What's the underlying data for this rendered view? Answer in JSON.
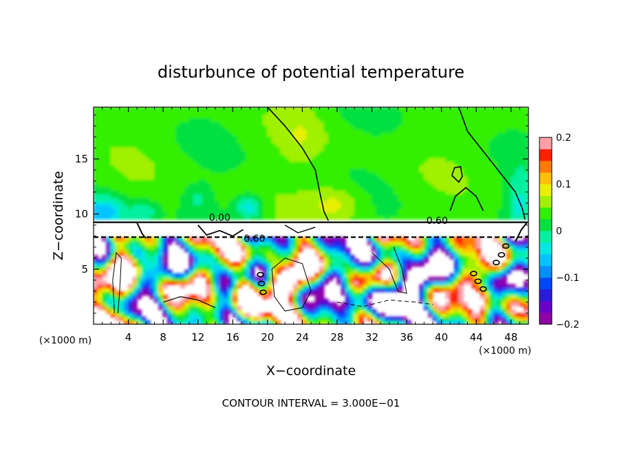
{
  "chart_data": {
    "type": "heatmap",
    "title": "disturbunce of potential temperature",
    "xlabel": "X−coordinate",
    "ylabel": "Z−coordinate",
    "x_unit": "(×1000 m)",
    "x_unit_right": "(×1000 m)",
    "xlim": [
      0,
      50
    ],
    "ylim": [
      0,
      19.7
    ],
    "x_ticks": [
      4,
      8,
      12,
      16,
      20,
      24,
      28,
      32,
      36,
      40,
      44,
      48
    ],
    "x_tick_labels": [
      "4",
      "8",
      "12",
      "16",
      "20",
      "24",
      "28",
      "32",
      "36",
      "40",
      "44",
      "48"
    ],
    "y_ticks": [
      5,
      10,
      15
    ],
    "y_tick_labels": [
      "5",
      "10",
      "15"
    ],
    "colorbar": {
      "range": [
        -0.2,
        0.2
      ],
      "levels": 16,
      "ticks": [
        -0.2,
        -0.1,
        0,
        0.1,
        0.2
      ],
      "tick_labels": [
        "−0.2",
        "−0.1",
        "0",
        "0.1",
        "0.2"
      ],
      "colors": [
        "#8f00a8",
        "#6a00cc",
        "#2a1ae0",
        "#0048ff",
        "#0090ff",
        "#00c4ff",
        "#00e8e0",
        "#00f0a0",
        "#00e040",
        "#30f000",
        "#a0f000",
        "#e8f000",
        "#ffc000",
        "#ff7a00",
        "#ff2000",
        "#ffa0a8"
      ]
    },
    "contour_labels": [
      {
        "text": "0.00",
        "x": 14.5,
        "z": 9.7
      },
      {
        "text": "0.60",
        "x": 18.5,
        "z": 7.8
      },
      {
        "text": "0.60",
        "x": 39.5,
        "z": 9.4
      }
    ],
    "annotation": "CONTOUR INTERVAL = 3.000E−01"
  }
}
